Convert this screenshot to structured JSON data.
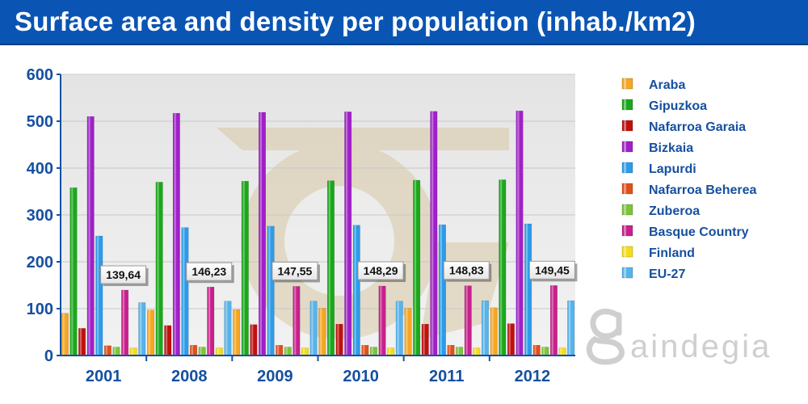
{
  "title": "Surface area and density per population (inhab./km2)",
  "watermark_text": "aindegia",
  "chart_data": {
    "type": "bar",
    "title": "Surface area and density per population (inhab./km2)",
    "xlabel": "",
    "ylabel": "",
    "ylim": [
      0,
      600
    ],
    "yticks": [
      0,
      100,
      200,
      300,
      400,
      500,
      600
    ],
    "grid": true,
    "legend_position": "right",
    "categories": [
      "2001",
      "2008",
      "2009",
      "2010",
      "2011",
      "2012"
    ],
    "series": [
      {
        "name": "Araba",
        "color": "#f5a623",
        "values": [
          90,
          97,
          98,
          101,
          101,
          102
        ]
      },
      {
        "name": "Gipuzkoa",
        "color": "#1aa81a",
        "values": [
          358,
          370,
          372,
          373,
          374,
          375
        ]
      },
      {
        "name": "Nafarroa Garaia",
        "color": "#c0100e",
        "values": [
          58,
          64,
          66,
          67,
          67,
          68
        ]
      },
      {
        "name": "Bizkaia",
        "color": "#a020c8",
        "values": [
          510,
          517,
          519,
          520,
          521,
          522
        ]
      },
      {
        "name": "Lapurdi",
        "color": "#2d9be8",
        "values": [
          255,
          273,
          276,
          278,
          279,
          281
        ]
      },
      {
        "name": "Nafarroa Beherea",
        "color": "#e0501a",
        "values": [
          21,
          22,
          22,
          22,
          22,
          22
        ]
      },
      {
        "name": "Zuberoa",
        "color": "#7cc43a",
        "values": [
          18,
          18,
          18,
          18,
          18,
          18
        ]
      },
      {
        "name": "Basque Country",
        "color": "#c8208c",
        "values": [
          139.64,
          146.23,
          147.55,
          148.29,
          148.83,
          149.45
        ]
      },
      {
        "name": "Finland",
        "color": "#f5dc18",
        "values": [
          16,
          16,
          16,
          16,
          16,
          16
        ]
      },
      {
        "name": "EU-27",
        "color": "#56b4ec",
        "values": [
          113,
          116,
          116,
          116,
          117,
          117
        ]
      }
    ],
    "annotations": [
      "139,64",
      "146,23",
      "147,55",
      "148,29",
      "148,83",
      "149,45"
    ]
  }
}
